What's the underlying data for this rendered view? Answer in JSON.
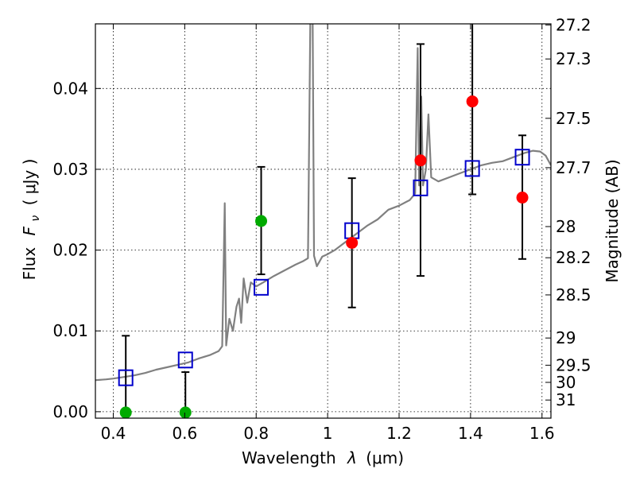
{
  "chart_data": {
    "type": "scatter",
    "title": "",
    "xlabel": "Wavelength",
    "xlabel_symbol": "λ",
    "xlabel_unit": "(μm)",
    "ylabel": "Flux",
    "ylabel_symbol": "F",
    "ylabel_symbol_sub": "ν",
    "ylabel_unit": "( μJy )",
    "y2label": "Magnitude (AB)",
    "xlim": [
      0.35,
      1.625
    ],
    "ylim": [
      -0.0008,
      0.048
    ],
    "grid": true,
    "x_ticks": [
      {
        "value": 0.4,
        "label": "0.4"
      },
      {
        "value": 0.6,
        "label": "0.6"
      },
      {
        "value": 0.8,
        "label": "0.8"
      },
      {
        "value": 1.0,
        "label": "1"
      },
      {
        "value": 1.2,
        "label": "1.2"
      },
      {
        "value": 1.4,
        "label": "1.4"
      },
      {
        "value": 1.6,
        "label": "1.6"
      }
    ],
    "y_ticks": [
      {
        "value": 0.0,
        "label": "0.00"
      },
      {
        "value": 0.01,
        "label": "0.01"
      },
      {
        "value": 0.02,
        "label": "0.02"
      },
      {
        "value": 0.03,
        "label": "0.03"
      },
      {
        "value": 0.04,
        "label": "0.04"
      }
    ],
    "y2_ticks": [
      {
        "value": 27.2,
        "label": "27.2"
      },
      {
        "value": 27.3,
        "label": "27.3"
      },
      {
        "value": 27.5,
        "label": "27.5"
      },
      {
        "value": 27.7,
        "label": "27.7"
      },
      {
        "value": 28,
        "label": "28"
      },
      {
        "value": 28.2,
        "label": "28.2"
      },
      {
        "value": 28.5,
        "label": "28.5"
      },
      {
        "value": 29,
        "label": "29"
      },
      {
        "value": 29.5,
        "label": "29.5"
      },
      {
        "value": 30,
        "label": "30"
      },
      {
        "value": 31,
        "label": "31"
      }
    ],
    "series": [
      {
        "kind": "line",
        "color": "#808080",
        "points": [
          [
            0.35,
            0.0039
          ],
          [
            0.38,
            0.004
          ],
          [
            0.4,
            0.0041
          ],
          [
            0.43,
            0.0043
          ],
          [
            0.46,
            0.0045
          ],
          [
            0.49,
            0.0048
          ],
          [
            0.52,
            0.0052
          ],
          [
            0.55,
            0.0055
          ],
          [
            0.58,
            0.0058
          ],
          [
            0.61,
            0.0061
          ],
          [
            0.64,
            0.0066
          ],
          [
            0.67,
            0.007
          ],
          [
            0.695,
            0.0075
          ],
          [
            0.705,
            0.0081
          ],
          [
            0.712,
            0.0258
          ],
          [
            0.716,
            0.0082
          ],
          [
            0.725,
            0.0115
          ],
          [
            0.735,
            0.01
          ],
          [
            0.745,
            0.013
          ],
          [
            0.752,
            0.014
          ],
          [
            0.758,
            0.011
          ],
          [
            0.765,
            0.0165
          ],
          [
            0.775,
            0.0135
          ],
          [
            0.785,
            0.016
          ],
          [
            0.8,
            0.0155
          ],
          [
            0.82,
            0.016
          ],
          [
            0.85,
            0.0168
          ],
          [
            0.88,
            0.0175
          ],
          [
            0.91,
            0.0182
          ],
          [
            0.93,
            0.0186
          ],
          [
            0.945,
            0.019
          ],
          [
            0.952,
            0.05
          ],
          [
            0.958,
            0.05
          ],
          [
            0.962,
            0.0193
          ],
          [
            0.97,
            0.018
          ],
          [
            0.985,
            0.0192
          ],
          [
            1.0,
            0.0195
          ],
          [
            1.02,
            0.02
          ],
          [
            1.05,
            0.021
          ],
          [
            1.08,
            0.022
          ],
          [
            1.11,
            0.023
          ],
          [
            1.14,
            0.0238
          ],
          [
            1.17,
            0.025
          ],
          [
            1.2,
            0.0255
          ],
          [
            1.23,
            0.0262
          ],
          [
            1.245,
            0.027
          ],
          [
            1.252,
            0.045
          ],
          [
            1.256,
            0.028
          ],
          [
            1.262,
            0.039
          ],
          [
            1.267,
            0.028
          ],
          [
            1.275,
            0.03
          ],
          [
            1.282,
            0.0368
          ],
          [
            1.29,
            0.029
          ],
          [
            1.31,
            0.0285
          ],
          [
            1.34,
            0.029
          ],
          [
            1.37,
            0.0295
          ],
          [
            1.4,
            0.03
          ],
          [
            1.43,
            0.0305
          ],
          [
            1.46,
            0.0308
          ],
          [
            1.49,
            0.031
          ],
          [
            1.52,
            0.0315
          ],
          [
            1.55,
            0.032
          ],
          [
            1.575,
            0.0323
          ],
          [
            1.595,
            0.0322
          ],
          [
            1.61,
            0.0317
          ],
          [
            1.625,
            0.0305
          ]
        ]
      },
      {
        "kind": "open-squares",
        "color": "#0000cc",
        "points": [
          [
            0.435,
            0.0042
          ],
          [
            0.602,
            0.0064
          ],
          [
            0.814,
            0.0154
          ],
          [
            1.068,
            0.0224
          ],
          [
            1.26,
            0.0277
          ],
          [
            1.405,
            0.0301
          ],
          [
            1.545,
            0.0315
          ]
        ]
      },
      {
        "kind": "filled-circles",
        "color": "#ff0000",
        "points": [
          {
            "x": 1.068,
            "y": 0.0209,
            "yerr_low": 0.0129,
            "yerr_high": 0.0289
          },
          {
            "x": 1.26,
            "y": 0.0311,
            "yerr_low": 0.0168,
            "yerr_high": 0.0455
          },
          {
            "x": 1.405,
            "y": 0.0384,
            "yerr_low": 0.0269,
            "yerr_high": 0.05
          },
          {
            "x": 1.545,
            "y": 0.0265,
            "yerr_low": 0.0189,
            "yerr_high": 0.0342
          }
        ]
      },
      {
        "kind": "filled-circles",
        "color": "#00aa00",
        "points": [
          {
            "x": 0.435,
            "y": -0.0001,
            "yerr_low": -0.001,
            "yerr_high": 0.0094
          },
          {
            "x": 0.602,
            "y": -0.0001,
            "yerr_low": -0.001,
            "yerr_high": 0.0049
          },
          {
            "x": 0.814,
            "y": 0.0236,
            "yerr_low": 0.017,
            "yerr_high": 0.0303
          }
        ]
      }
    ]
  }
}
